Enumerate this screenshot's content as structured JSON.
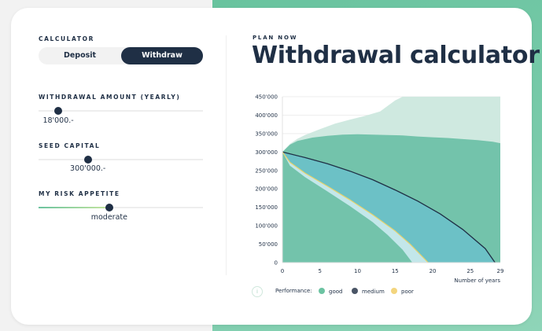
{
  "calculator": {
    "section_label": "CALCULATOR",
    "toggle": {
      "options": [
        "Deposit",
        "Withdraw"
      ],
      "selected": "Withdraw"
    },
    "withdrawal_amount": {
      "label": "WITHDRAWAL AMOUNT (YEARLY)",
      "value_text": "18'000.-",
      "fraction": 0.12
    },
    "seed_capital": {
      "label": "SEED CAPITAL",
      "value_text": "300'000.-",
      "fraction": 0.3
    },
    "risk_appetite": {
      "label": "MY RISK APPETITE",
      "value_text": "moderate",
      "fraction": 0.43
    }
  },
  "header": {
    "kicker": "PLAN NOW",
    "title": "Withdrawal calculator"
  },
  "legend": {
    "info_icon": "info-icon",
    "label": "Performance:",
    "items": [
      {
        "name": "good",
        "color": "#6cc3a2"
      },
      {
        "name": "medium",
        "color": "#4a5566"
      },
      {
        "name": "poor",
        "color": "#f3d57e"
      }
    ]
  },
  "colors": {
    "navy": "#1f2f45",
    "good_band": "#cfe9e0",
    "good_area": "#73c3ab",
    "medium_area": "#6cc1c6",
    "poor_band": "#c3e7ea",
    "medium_line": "#1f2f45",
    "poor_line": "#e8d36a"
  },
  "chart_data": {
    "type": "area",
    "xlabel": "Number of years",
    "ylabel": "",
    "xlim": [
      0,
      29
    ],
    "ylim": [
      0,
      450000
    ],
    "x_ticks": [
      0,
      5,
      10,
      15,
      20,
      25,
      29
    ],
    "x_tick_labels": [
      "0",
      "5",
      "10",
      "15",
      "20",
      "25",
      "29"
    ],
    "y_ticks": [
      0,
      50000,
      100000,
      150000,
      200000,
      250000,
      300000,
      350000,
      400000,
      450000
    ],
    "y_tick_labels": [
      "0",
      "50'000",
      "100'000",
      "150'000",
      "200'000",
      "250'000",
      "300'000",
      "350'000",
      "400'000",
      "450'000"
    ],
    "grid": true,
    "legend_position": "bottom-left",
    "series": [
      {
        "name": "good (upper range)",
        "x": [
          0,
          1,
          2,
          3,
          5,
          7,
          9,
          11,
          13,
          14,
          15,
          16,
          29
        ],
        "values": [
          300000,
          322000,
          336000,
          346000,
          362000,
          377000,
          388000,
          398000,
          410000,
          425000,
          440000,
          450000,
          450000
        ]
      },
      {
        "name": "good",
        "x": [
          0,
          1,
          2,
          4,
          6,
          8,
          10,
          12,
          14,
          16,
          18,
          20,
          22,
          24,
          26,
          28,
          29
        ],
        "values": [
          300000,
          320000,
          330000,
          339000,
          344000,
          347000,
          348000,
          347000,
          346000,
          345000,
          342000,
          340000,
          338000,
          335000,
          332000,
          328000,
          324000
        ]
      },
      {
        "name": "medium",
        "x": [
          0,
          3,
          6,
          9,
          12,
          15,
          18,
          21,
          24,
          27,
          28.3
        ],
        "values": [
          300000,
          285000,
          268000,
          248000,
          225000,
          197000,
          167000,
          132000,
          90000,
          38000,
          0
        ]
      },
      {
        "name": "poor",
        "x": [
          0,
          1,
          3,
          6,
          9,
          12,
          15,
          17,
          19.4
        ],
        "values": [
          300000,
          272000,
          243000,
          207000,
          170000,
          130000,
          86000,
          50000,
          0
        ]
      },
      {
        "name": "poor (lower range)",
        "x": [
          0,
          1,
          3,
          6,
          9,
          12,
          14,
          16,
          17.3
        ],
        "values": [
          300000,
          263000,
          232000,
          193000,
          153000,
          110000,
          75000,
          35000,
          0
        ]
      }
    ]
  }
}
